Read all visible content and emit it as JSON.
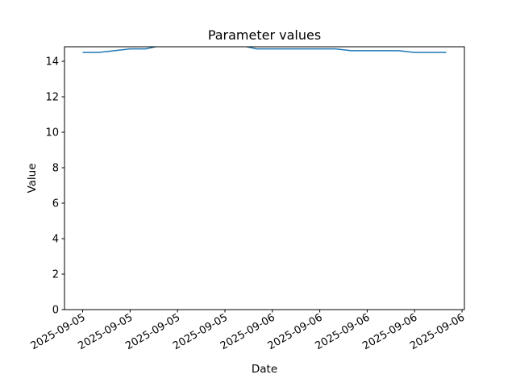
{
  "chart_data": {
    "type": "line",
    "title": "Parameter values",
    "xlabel": "Date",
    "ylabel": "Value",
    "ylim": [
      0,
      14.82
    ],
    "xlim": [
      "2025-09-05 10:51",
      "2025-09-06 12:09"
    ],
    "grid": false,
    "line_color": "#1f77b4",
    "yticks": [
      0,
      2,
      4,
      6,
      8,
      10,
      12,
      14
    ],
    "xticks": [
      {
        "t": "2025-09-05 12:00",
        "label": "2025-09-05"
      },
      {
        "t": "2025-09-05 15:00",
        "label": "2025-09-05"
      },
      {
        "t": "2025-09-05 18:00",
        "label": "2025-09-05"
      },
      {
        "t": "2025-09-05 21:00",
        "label": "2025-09-05"
      },
      {
        "t": "2025-09-06 00:00",
        "label": "2025-09-06"
      },
      {
        "t": "2025-09-06 03:00",
        "label": "2025-09-06"
      },
      {
        "t": "2025-09-06 06:00",
        "label": "2025-09-06"
      },
      {
        "t": "2025-09-06 09:00",
        "label": "2025-09-06"
      },
      {
        "t": "2025-09-06 12:00",
        "label": "2025-09-06"
      }
    ],
    "x": [
      "2025-09-05 12:00",
      "2025-09-05 13:00",
      "2025-09-05 14:00",
      "2025-09-05 15:00",
      "2025-09-05 16:00",
      "2025-09-05 17:00",
      "2025-09-05 18:00",
      "2025-09-05 19:00",
      "2025-09-05 20:00",
      "2025-09-05 21:00",
      "2025-09-05 22:00",
      "2025-09-05 23:00",
      "2025-09-06 00:00",
      "2025-09-06 01:00",
      "2025-09-06 02:00",
      "2025-09-06 03:00",
      "2025-09-06 04:00",
      "2025-09-06 05:00",
      "2025-09-06 06:00",
      "2025-09-06 07:00",
      "2025-09-06 08:00",
      "2025-09-06 09:00",
      "2025-09-06 10:00",
      "2025-09-06 11:00"
    ],
    "values": [
      14.5,
      14.5,
      14.6,
      14.7,
      14.7,
      14.9,
      15.0,
      15.0,
      15.0,
      14.9,
      14.9,
      14.7,
      14.7,
      14.7,
      14.7,
      14.7,
      14.7,
      14.6,
      14.6,
      14.6,
      14.6,
      14.5,
      14.5,
      14.5
    ]
  }
}
